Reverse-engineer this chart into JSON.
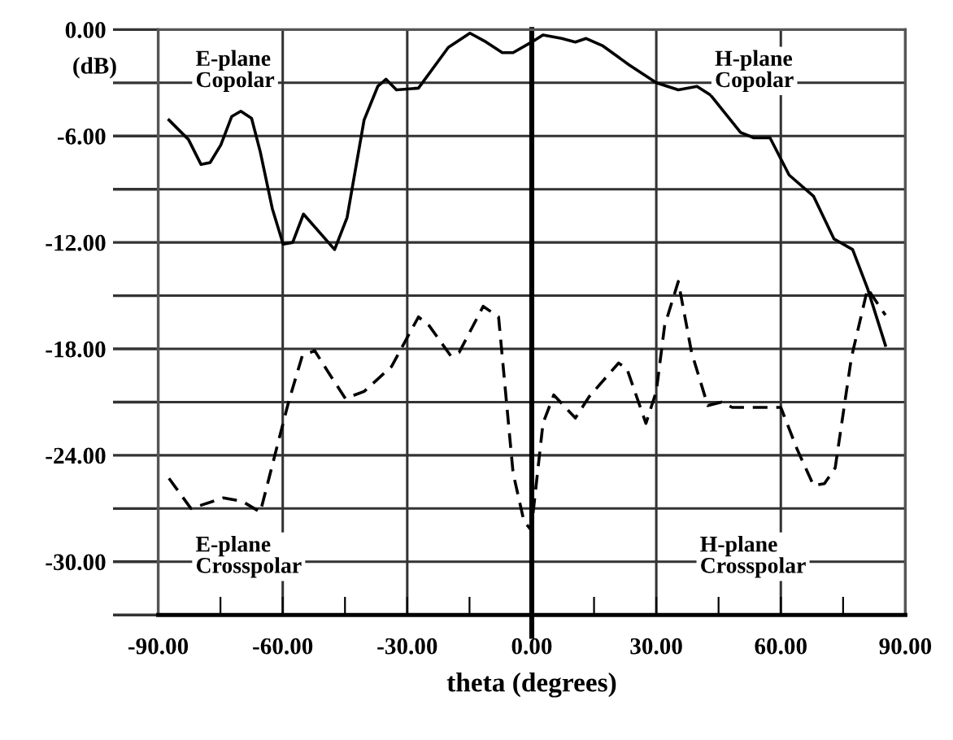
{
  "chart_data": {
    "type": "line",
    "xlabel": "theta (degrees)",
    "ylabel": "(dB)",
    "xlim": [
      -90,
      90
    ],
    "ylim": [
      -33,
      0
    ],
    "xticks": [
      {
        "value": -90,
        "label": "-90.00"
      },
      {
        "value": -75,
        "label": null
      },
      {
        "value": -60,
        "label": "-60.00"
      },
      {
        "value": -45,
        "label": null
      },
      {
        "value": -30,
        "label": "-30.00"
      },
      {
        "value": -15,
        "label": null
      },
      {
        "value": 0,
        "label": "0.00"
      },
      {
        "value": 15,
        "label": null
      },
      {
        "value": 30,
        "label": "30.00"
      },
      {
        "value": 45,
        "label": null
      },
      {
        "value": 60,
        "label": "60.00"
      },
      {
        "value": 75,
        "label": null
      },
      {
        "value": 90,
        "label": "90.00"
      }
    ],
    "yticks": [
      {
        "value": 0,
        "label": "0.00"
      },
      {
        "value": -3,
        "label": null
      },
      {
        "value": -6,
        "label": "-6.00"
      },
      {
        "value": -9,
        "label": null
      },
      {
        "value": -12,
        "label": "-12.00"
      },
      {
        "value": -15,
        "label": null
      },
      {
        "value": -18,
        "label": "-18.00"
      },
      {
        "value": -21,
        "label": null
      },
      {
        "value": -24,
        "label": "-24.00"
      },
      {
        "value": -27,
        "label": null
      },
      {
        "value": -30,
        "label": "-30.00"
      },
      {
        "value": -33,
        "label": null
      }
    ],
    "grid": true,
    "legend": false,
    "ref_lines": [
      {
        "axis": "x",
        "value": 0,
        "label": null,
        "color": "#000000"
      }
    ],
    "annotations": [
      "E-plane\nCopolar",
      "H-plane\nCopolar",
      "E-plane\nCrosspolar",
      "H-plane\nCrosspolar"
    ],
    "series": [
      {
        "color": "#000000",
        "line_style": "solid",
        "x": [
          -87.4,
          -82.7,
          -79.7,
          -77.5,
          -74.9,
          -72.3,
          -70.1,
          -67.5,
          -65.4,
          -62.5,
          -59.9,
          -57.6,
          -55.0,
          -47.5,
          -44.5,
          -40.4,
          -37.1,
          -35.1,
          -32.6,
          -27.3,
          -20.1,
          -14.9,
          -11.0,
          -7.1,
          -4.5,
          0,
          2.7,
          7.2,
          10.5,
          13.1,
          17.0,
          23.5,
          30.0,
          35.3,
          39.8,
          43.1,
          50.3,
          53.5,
          57.4,
          62.0,
          67.9,
          72.8,
          77.3,
          80.9,
          85.2
        ],
        "values": [
          -5.1,
          -6.2,
          -7.6,
          -7.5,
          -6.5,
          -4.9,
          -4.6,
          -5.0,
          -6.9,
          -10.1,
          -12.1,
          -12.0,
          -10.4,
          -12.4,
          -10.6,
          -5.1,
          -3.2,
          -2.8,
          -3.4,
          -3.3,
          -1.0,
          -0.2,
          -0.7,
          -1.3,
          -1.3,
          -0.7,
          -0.3,
          -0.5,
          -0.7,
          -0.5,
          -0.9,
          -2.0,
          -3.0,
          -3.4,
          -3.2,
          -3.7,
          -5.8,
          -6.1,
          -6.1,
          -8.2,
          -9.4,
          -11.8,
          -12.4,
          -14.6,
          -17.8
        ]
      },
      {
        "color": "#000000",
        "line_style": "dashed",
        "x": [
          -87.4,
          -82.1,
          -74.3,
          -69.7,
          -65.4,
          -61.9,
          -58.6,
          -55.3,
          -52.3,
          -48.8,
          -44.9,
          -40.4,
          -33.8,
          -27.3,
          -24.7,
          -19.5,
          -17.5,
          -11.7,
          -8.0,
          -4.5,
          -1.9,
          -0.2,
          0.1,
          2.7,
          5.3,
          10.5,
          13.8,
          20.9,
          22.9,
          27.5,
          30.0,
          32.0,
          35.3,
          38.5,
          42.4,
          45.7,
          48.3,
          60.0,
          64.0,
          67.9,
          70.5,
          73.1,
          77.0,
          80.9,
          85.2
        ],
        "values": [
          -25.3,
          -27.0,
          -26.4,
          -26.6,
          -27.2,
          -24.0,
          -21.0,
          -18.4,
          -18.1,
          -19.4,
          -20.8,
          -20.4,
          -19.0,
          -16.2,
          -16.7,
          -18.4,
          -18.2,
          -15.6,
          -16.2,
          -25.0,
          -27.7,
          -28.2,
          -27.7,
          -22.2,
          -20.6,
          -21.9,
          -20.7,
          -18.8,
          -19.1,
          -22.2,
          -20.4,
          -16.7,
          -14.2,
          -18.2,
          -21.2,
          -21.0,
          -21.3,
          -21.3,
          -23.7,
          -25.7,
          -25.6,
          -24.7,
          -18.5,
          -14.6,
          -16.1
        ]
      }
    ]
  }
}
